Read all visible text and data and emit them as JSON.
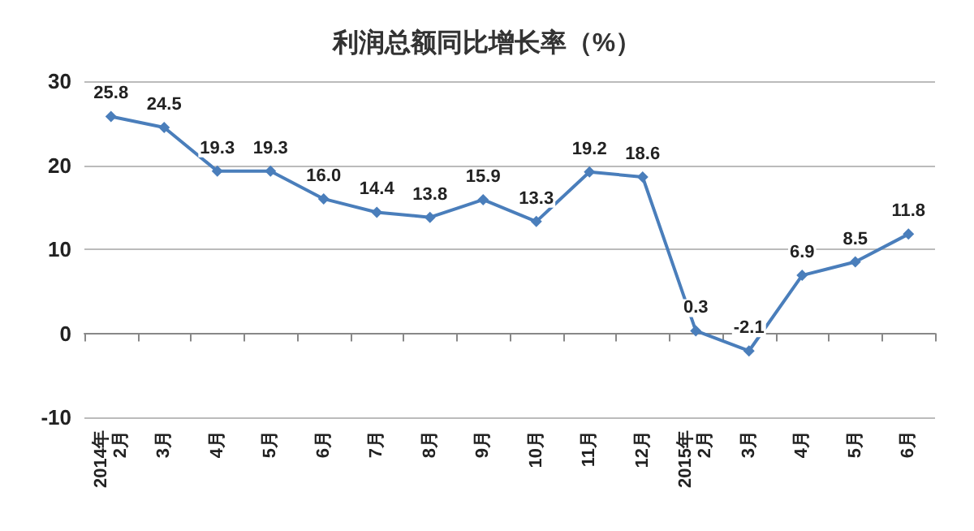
{
  "chart_data": {
    "type": "line",
    "title": "利润总额同比增长率（%）",
    "categories": [
      "2014年\n2月",
      "3月",
      "4月",
      "5月",
      "6月",
      "7月",
      "8月",
      "9月",
      "10月",
      "11月",
      "12月",
      "2015年\n2月",
      "3月",
      "4月",
      "5月",
      "6月"
    ],
    "series": [
      {
        "color": "#4a7ebb",
        "values": [
          25.8,
          24.5,
          19.3,
          19.3,
          16.0,
          14.4,
          13.8,
          15.9,
          13.3,
          19.2,
          18.6,
          0.3,
          -2.1,
          6.9,
          8.5,
          11.8
        ],
        "value_labels": [
          "25.8",
          "24.5",
          "19.3",
          "19.3",
          "16.0",
          "14.4",
          "13.8",
          "15.9",
          "13.3",
          "19.2",
          "18.6",
          "0.3",
          "-2.1",
          "6.9",
          "8.5",
          "11.8"
        ]
      }
    ],
    "ylim": [
      -10,
      30
    ],
    "yticks": [
      -10,
      0,
      10,
      20,
      30
    ],
    "grid": "y",
    "marker": "diamond",
    "line_style": "solid"
  }
}
